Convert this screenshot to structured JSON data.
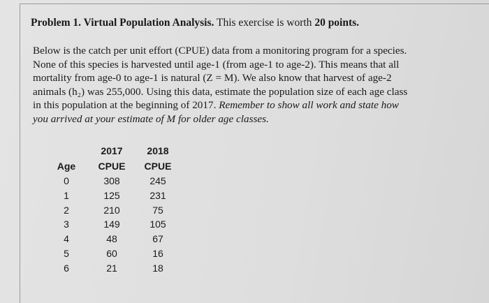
{
  "header": {
    "title_bold": "Problem 1. Virtual Population Analysis.",
    "title_plain": " This exercise is worth ",
    "title_points": "20 points."
  },
  "body": {
    "lines": [
      {
        "plain": "Below is the catch per unit effort (CPUE) data from a monitoring program for a species."
      },
      {
        "plain": "None of this species is harvested until age-1 (from age-1 to age-2).  This means that all"
      },
      {
        "plain": "mortality from age-0 to age-1 is natural (Z = M).  We also know that harvest of age-2"
      },
      {
        "plain": "animals (h₂) was 255,000.  Using this data, estimate the population size of each age class"
      },
      {
        "plain": "in this population at the beginning of 2017. ",
        "italic": "Remember to show all work and state how"
      },
      {
        "italic": "you arrived at your estimate of M for older age classes."
      }
    ]
  },
  "table": {
    "years": [
      "2017",
      "2018"
    ],
    "columns": [
      "Age",
      "CPUE",
      "CPUE"
    ],
    "rows": [
      [
        0,
        308,
        245
      ],
      [
        1,
        125,
        231
      ],
      [
        2,
        210,
        75
      ],
      [
        3,
        149,
        105
      ],
      [
        4,
        48,
        67
      ],
      [
        5,
        60,
        16
      ],
      [
        6,
        21,
        18
      ]
    ]
  }
}
